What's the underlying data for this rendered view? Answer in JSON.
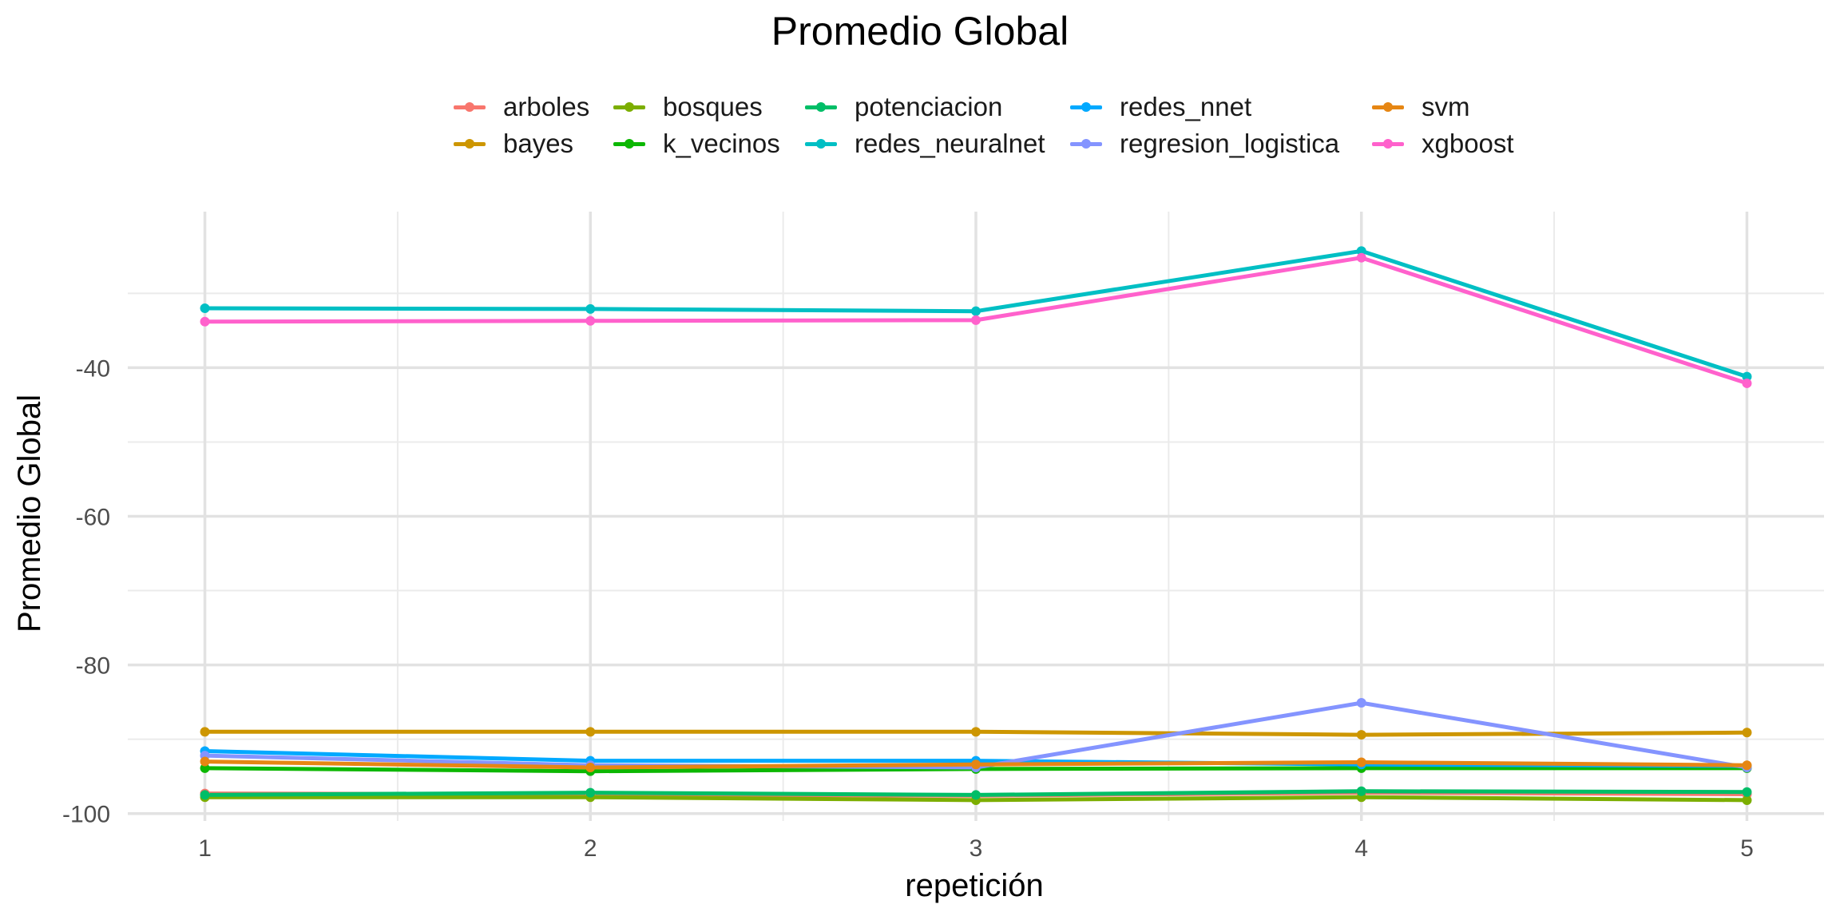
{
  "chart_data": {
    "type": "line",
    "title": "Promedio Global",
    "xlabel": "repetición",
    "ylabel": "Promedio Global",
    "x": [
      1,
      2,
      3,
      4,
      5
    ],
    "xticks": [
      "1",
      "2",
      "3",
      "4",
      "5"
    ],
    "yticks": [
      "-100",
      "-80",
      "-60",
      "-40"
    ],
    "ylim": [
      -101,
      -19
    ],
    "xlim": [
      0.8,
      5.2
    ],
    "grid": true,
    "legend_position": "top",
    "series": [
      {
        "name": "arboles",
        "color": "#F8766D",
        "values": [
          -97.3,
          -97.4,
          -97.6,
          -97.2,
          -97.4
        ]
      },
      {
        "name": "bayes",
        "color": "#CD9600",
        "values": [
          -89.0,
          -89.0,
          -89.0,
          -89.4,
          -89.1
        ]
      },
      {
        "name": "bosques",
        "color": "#7CAE00",
        "values": [
          -97.8,
          -97.8,
          -98.2,
          -97.8,
          -98.2
        ]
      },
      {
        "name": "k_vecinos",
        "color": "#0CB702",
        "values": [
          -93.9,
          -94.3,
          -94.0,
          -93.9,
          -93.9
        ]
      },
      {
        "name": "potenciacion",
        "color": "#00BE67",
        "values": [
          -97.5,
          -97.2,
          -97.5,
          -97.0,
          -97.1
        ]
      },
      {
        "name": "redes_neuralnet",
        "color": "#00BFC4",
        "values": [
          -32.0,
          -32.1,
          -32.4,
          -24.3,
          -41.2
        ]
      },
      {
        "name": "redes_nnet",
        "color": "#00A9FF",
        "values": [
          -91.6,
          -92.9,
          -92.9,
          -93.4,
          -93.6
        ]
      },
      {
        "name": "regresion_logistica",
        "color": "#8494FF",
        "values": [
          -92.2,
          -93.5,
          -93.8,
          -85.1,
          -93.8
        ]
      },
      {
        "name": "svm",
        "color": "#E68613",
        "values": [
          -93.0,
          -93.8,
          -93.4,
          -93.1,
          -93.5
        ]
      },
      {
        "name": "xgboost",
        "color": "#FF61CC",
        "values": [
          -33.8,
          -33.7,
          -33.6,
          -25.2,
          -42.1
        ]
      }
    ]
  }
}
